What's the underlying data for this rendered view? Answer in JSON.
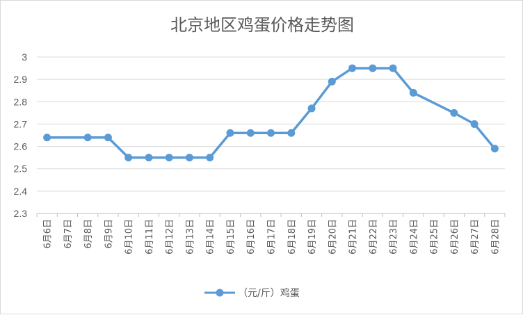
{
  "chart_data": {
    "type": "line",
    "title": "北京地区鸡蛋价格走势图",
    "categories": [
      "6月6日",
      "6月7日",
      "6月8日",
      "6月9日",
      "6月10日",
      "6月11日",
      "6月12日",
      "6月13日",
      "6月14日",
      "6月15日",
      "6月16日",
      "6月17日",
      "6月18日",
      "6月19日",
      "6月20日",
      "6月21日",
      "6月22日",
      "6月23日",
      "6月24日",
      "6月25日",
      "6月26日",
      "6月27日",
      "6月28日"
    ],
    "series": [
      {
        "name": "（元/斤）鸡蛋",
        "color": "#5b9bd5",
        "values": [
          2.64,
          null,
          2.64,
          2.64,
          2.55,
          2.55,
          2.55,
          2.55,
          2.55,
          2.66,
          2.66,
          2.66,
          2.66,
          2.77,
          2.89,
          2.95,
          2.95,
          2.95,
          2.84,
          null,
          2.75,
          2.7,
          2.59
        ],
        "marker_indices": [
          0,
          2,
          3,
          4,
          5,
          6,
          7,
          8,
          9,
          10,
          11,
          12,
          13,
          14,
          15,
          16,
          17,
          18,
          20,
          21,
          22
        ]
      }
    ],
    "yticks": [
      "2.3",
      "2.4",
      "2.5",
      "2.6",
      "2.7",
      "2.8",
      "2.9",
      "3"
    ],
    "ylim": [
      2.3,
      3.0
    ],
    "grid": true,
    "legend_position": "bottom"
  }
}
